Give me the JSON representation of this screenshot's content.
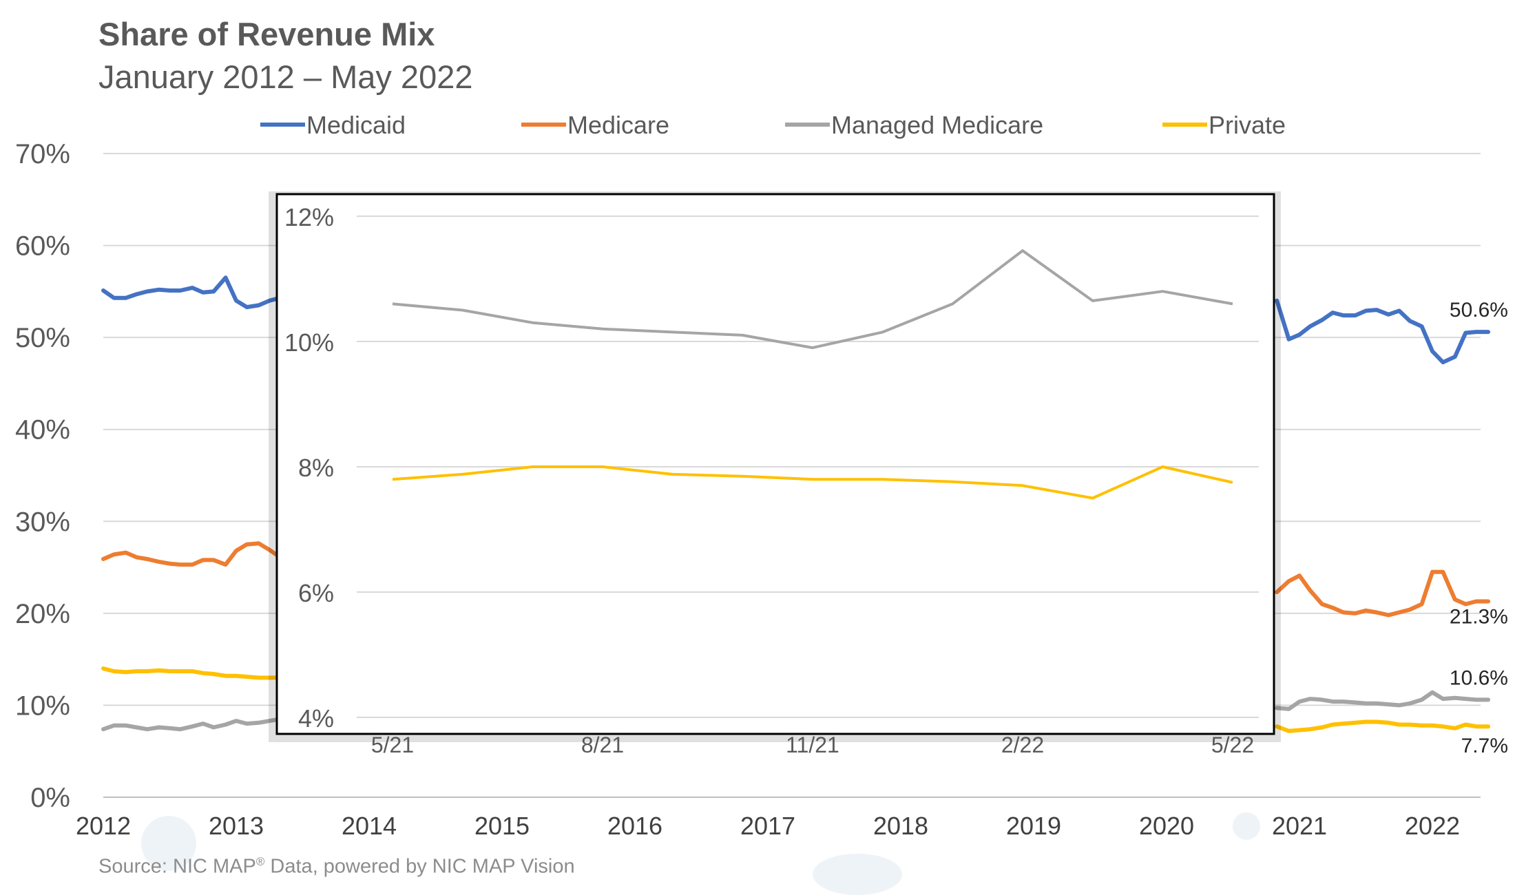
{
  "title": "Share of Revenue Mix",
  "subtitle": "January 2012 – May 2022",
  "source": {
    "text": "Source: NIC MAP",
    "reg": "®",
    "rest": " Data, powered by NIC MAP Vision"
  },
  "colors": {
    "Medicaid": "#4472c4",
    "Medicare": "#ed7d31",
    "Managed Medicare": "#a5a5a5",
    "Private": "#ffc000"
  },
  "chart_data": [
    {
      "type": "line",
      "legend": [
        "Medicaid",
        "Medicare",
        "Managed Medicare",
        "Private"
      ],
      "legend_position": "top",
      "ylim": [
        0,
        70
      ],
      "xlim": [
        2012,
        2022.42
      ],
      "grid": true,
      "yticks": [
        "0%",
        "10%",
        "20%",
        "30%",
        "40%",
        "50%",
        "60%",
        "70%"
      ],
      "xticks": [
        "2012",
        "2013",
        "2014",
        "2015",
        "2016",
        "2017",
        "2018",
        "2019",
        "2020",
        "2021",
        "2022"
      ],
      "end_labels": [
        {
          "series": "Medicaid",
          "text": "50.6%"
        },
        {
          "series": "Medicare",
          "text": "21.3%"
        },
        {
          "series": "Managed Medicare",
          "text": "10.6%"
        },
        {
          "series": "Private",
          "text": "7.7%"
        }
      ],
      "series": [
        {
          "name": "Medicaid",
          "segments": [
            {
              "x": [
                2012.0,
                2012.08,
                2012.17,
                2012.25,
                2012.33,
                2012.42,
                2012.5,
                2012.58,
                2012.67,
                2012.75,
                2012.83,
                2012.92,
                2013.0,
                2013.08,
                2013.17,
                2013.25,
                2013.33,
                2013.42
              ],
              "y": [
                55.1,
                54.3,
                54.3,
                54.7,
                55.0,
                55.2,
                55.1,
                55.1,
                55.4,
                54.9,
                55.0,
                56.5,
                54.0,
                53.3,
                53.5,
                54.0,
                54.3,
                54.6
              ]
            },
            {
              "x": [
                2020.83,
                2020.92,
                2021.0,
                2021.08,
                2021.17,
                2021.25,
                2021.33,
                2021.42,
                2021.5,
                2021.58,
                2021.67,
                2021.75,
                2021.83,
                2021.92,
                2022.0,
                2022.08,
                2022.17,
                2022.25,
                2022.33,
                2022.42
              ],
              "y": [
                54.0,
                49.8,
                50.3,
                51.2,
                51.9,
                52.7,
                52.4,
                52.4,
                52.9,
                53.0,
                52.5,
                52.9,
                51.8,
                51.2,
                48.5,
                47.3,
                47.9,
                50.5,
                50.6,
                50.6
              ]
            }
          ]
        },
        {
          "name": "Medicare",
          "segments": [
            {
              "x": [
                2012.0,
                2012.08,
                2012.17,
                2012.25,
                2012.33,
                2012.42,
                2012.5,
                2012.58,
                2012.67,
                2012.75,
                2012.83,
                2012.92,
                2013.0,
                2013.08,
                2013.17,
                2013.25,
                2013.33,
                2013.42
              ],
              "y": [
                25.9,
                26.4,
                26.6,
                26.1,
                25.9,
                25.6,
                25.4,
                25.3,
                25.3,
                25.8,
                25.8,
                25.3,
                26.8,
                27.5,
                27.6,
                26.9,
                26.1,
                25.6
              ]
            },
            {
              "x": [
                2020.83,
                2020.92,
                2021.0,
                2021.08,
                2021.17,
                2021.25,
                2021.33,
                2021.42,
                2021.5,
                2021.58,
                2021.67,
                2021.75,
                2021.83,
                2021.92,
                2022.0,
                2022.08,
                2022.17,
                2022.25,
                2022.33,
                2022.42
              ],
              "y": [
                22.3,
                23.5,
                24.1,
                22.5,
                21.0,
                20.6,
                20.1,
                20.0,
                20.3,
                20.1,
                19.8,
                20.1,
                20.4,
                21.0,
                24.5,
                24.5,
                21.5,
                21.0,
                21.3,
                21.3
              ]
            }
          ]
        },
        {
          "name": "Managed Medicare",
          "segments": [
            {
              "x": [
                2012.0,
                2012.08,
                2012.17,
                2012.25,
                2012.33,
                2012.42,
                2012.5,
                2012.58,
                2012.67,
                2012.75,
                2012.83,
                2012.92,
                2013.0,
                2013.08,
                2013.17,
                2013.25,
                2013.33,
                2013.42
              ],
              "y": [
                7.4,
                7.8,
                7.8,
                7.6,
                7.4,
                7.6,
                7.5,
                7.4,
                7.7,
                8.0,
                7.6,
                7.9,
                8.3,
                8.0,
                8.1,
                8.3,
                8.5,
                8.5
              ]
            },
            {
              "x": [
                2020.83,
                2020.92,
                2021.0,
                2021.08,
                2021.17,
                2021.25,
                2021.33,
                2021.42,
                2021.5,
                2021.58,
                2021.67,
                2021.75,
                2021.83,
                2021.92,
                2022.0,
                2022.08,
                2022.17,
                2022.25,
                2022.33,
                2022.42
              ],
              "y": [
                9.7,
                9.6,
                10.4,
                10.7,
                10.6,
                10.4,
                10.4,
                10.3,
                10.2,
                10.2,
                10.1,
                10.0,
                10.2,
                10.6,
                11.4,
                10.7,
                10.8,
                10.7,
                10.6,
                10.6
              ]
            }
          ]
        },
        {
          "name": "Private",
          "segments": [
            {
              "x": [
                2012.0,
                2012.08,
                2012.17,
                2012.25,
                2012.33,
                2012.42,
                2012.5,
                2012.58,
                2012.67,
                2012.75,
                2012.83,
                2012.92,
                2013.0,
                2013.08,
                2013.17,
                2013.25,
                2013.33,
                2013.42
              ],
              "y": [
                14.0,
                13.7,
                13.6,
                13.7,
                13.7,
                13.8,
                13.7,
                13.7,
                13.7,
                13.5,
                13.4,
                13.2,
                13.2,
                13.1,
                13.0,
                13.0,
                13.0,
                13.0
              ]
            },
            {
              "x": [
                2020.83,
                2020.92,
                2021.0,
                2021.08,
                2021.17,
                2021.25,
                2021.33,
                2021.42,
                2021.5,
                2021.58,
                2021.67,
                2021.75,
                2021.83,
                2021.92,
                2022.0,
                2022.08,
                2022.17,
                2022.25,
                2022.33,
                2022.42
              ],
              "y": [
                7.7,
                7.2,
                7.3,
                7.4,
                7.6,
                7.9,
                8.0,
                8.1,
                8.2,
                8.2,
                8.1,
                7.9,
                7.9,
                7.8,
                7.8,
                7.7,
                7.5,
                7.9,
                7.7,
                7.7
              ]
            }
          ]
        }
      ]
    },
    {
      "type": "line",
      "inset": true,
      "ylim": [
        4,
        12
      ],
      "grid": true,
      "yticks": [
        "4%",
        "6%",
        "8%",
        "10%",
        "12%"
      ],
      "x": [
        "5/21",
        "6/21",
        "7/21",
        "8/21",
        "9/21",
        "10/21",
        "11/21",
        "12/21",
        "1/22",
        "2/22",
        "3/22",
        "4/22",
        "5/22"
      ],
      "xtick_labels": [
        "5/21",
        "8/21",
        "11/21",
        "2/22",
        "5/22"
      ],
      "series": [
        {
          "name": "Managed Medicare",
          "values": [
            10.6,
            10.5,
            10.3,
            10.2,
            10.15,
            10.1,
            9.9,
            10.15,
            10.6,
            11.45,
            10.65,
            10.8,
            10.6
          ]
        },
        {
          "name": "Private",
          "values": [
            7.8,
            7.88,
            8.0,
            8.0,
            7.88,
            7.85,
            7.8,
            7.8,
            7.76,
            7.7,
            7.5,
            8.0,
            7.75
          ]
        }
      ]
    }
  ]
}
